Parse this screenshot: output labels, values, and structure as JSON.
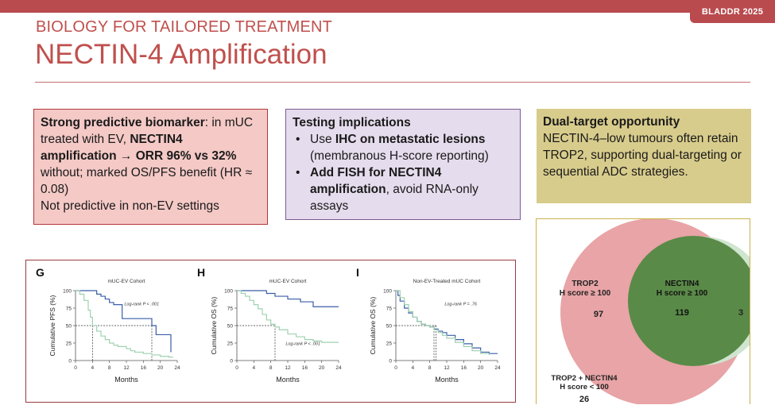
{
  "event_badge": "BLADDR 2025",
  "header": {
    "subtitle": "BIOLOGY FOR TAILORED TREATMENT",
    "title": "NECTIN-4 Amplification"
  },
  "box_red": {
    "b1": "Strong predictive biomarker",
    "t1": ": in mUC treated with EV, ",
    "b2": "NECTIN4 amplification → ORR 96% vs 32%",
    "t2": " without; marked OS/PFS benefit (HR ≈ 0.08)",
    "t3": "Not predictive in non-EV settings"
  },
  "box_purple": {
    "heading": "Testing implications",
    "bullet": "•",
    "i1_pre": "Use ",
    "i1_bold": "IHC on metastatic lesions",
    "i1_post": " (membranous H-score reporting)",
    "i2_bold": "Add FISH for NECTIN4 amplification",
    "i2_post": ", avoid RNA-only assays"
  },
  "box_gold": {
    "heading": "Dual-target opportunity",
    "text": "NECTIN-4–low tumours often retain TROP2, supporting dual-targeting or sequential ADC strategies."
  },
  "chart_data": [
    {
      "type": "line",
      "panel": "G",
      "title": "mUC-EV Cohort",
      "xlabel": "Months",
      "ylabel": "Cumulative PFS (%)",
      "annotation": "Log-rank P < .001",
      "xticks": [
        "0",
        "4",
        "8",
        "12",
        "16",
        "20",
        "24"
      ],
      "yticks": [
        "0",
        "25",
        "50",
        "75",
        "100"
      ],
      "xlim": [
        0,
        24
      ],
      "ylim": [
        0,
        100
      ],
      "series": [
        {
          "color": "#3a5ea8",
          "x": [
            0,
            4.5,
            5,
            6,
            7,
            8,
            9,
            10,
            11,
            16,
            18,
            19,
            22,
            22.5
          ],
          "y": [
            100,
            100,
            95,
            92,
            88,
            83,
            80,
            80,
            60,
            60,
            50,
            37,
            37,
            12
          ]
        },
        {
          "color": "#9fd1b0",
          "x": [
            0,
            1,
            2,
            3,
            3.5,
            4,
            5,
            6,
            7,
            8,
            9,
            10,
            12,
            13,
            14,
            16,
            18,
            20,
            22,
            23
          ],
          "y": [
            100,
            95,
            86,
            72,
            62,
            50,
            42,
            35,
            30,
            25,
            22,
            20,
            17,
            14,
            12,
            10,
            8,
            6,
            5,
            5
          ]
        }
      ]
    },
    {
      "type": "line",
      "panel": "H",
      "title": "mUC-EV Cohort",
      "xlabel": "Months",
      "ylabel": "Cumulative OS (%)",
      "annotation": "Log-rank P < .001",
      "xticks": [
        "0",
        "4",
        "8",
        "12",
        "16",
        "20",
        "24"
      ],
      "yticks": [
        "0",
        "25",
        "50",
        "75",
        "100"
      ],
      "xlim": [
        0,
        24
      ],
      "ylim": [
        0,
        100
      ],
      "series": [
        {
          "color": "#3a5ea8",
          "x": [
            0,
            6,
            7,
            8,
            9,
            10,
            12,
            13,
            15,
            16,
            18,
            20,
            24
          ],
          "y": [
            100,
            100,
            96,
            96,
            92,
            92,
            88,
            88,
            84,
            84,
            77,
            77,
            77
          ]
        },
        {
          "color": "#9fd1b0",
          "x": [
            0,
            1,
            2,
            3,
            4,
            5,
            6,
            7,
            8,
            9,
            10,
            12,
            14,
            16,
            18,
            20,
            24
          ],
          "y": [
            100,
            96,
            92,
            86,
            80,
            74,
            66,
            58,
            52,
            48,
            44,
            38,
            34,
            30,
            28,
            26,
            26
          ]
        }
      ]
    },
    {
      "type": "line",
      "panel": "I",
      "title": "Non-EV-Treated mUC Cohort",
      "xlabel": "Months",
      "ylabel": "Cumulative OS (%)",
      "annotation": "Log-rank P = .76",
      "xticks": [
        "0",
        "4",
        "8",
        "12",
        "16",
        "20",
        "24"
      ],
      "yticks": [
        "0",
        "25",
        "50",
        "75",
        "100"
      ],
      "xlim": [
        0,
        24
      ],
      "ylim": [
        0,
        100
      ],
      "series": [
        {
          "color": "#3a5ea8",
          "x": [
            0,
            0.5,
            1,
            2,
            3,
            4,
            5,
            6,
            7,
            8,
            9,
            10,
            11,
            12,
            14,
            16,
            18,
            20,
            22,
            24
          ],
          "y": [
            100,
            93,
            85,
            75,
            68,
            62,
            56,
            52,
            50,
            48,
            45,
            42,
            40,
            36,
            30,
            24,
            18,
            12,
            10,
            10
          ]
        },
        {
          "color": "#9fd1b0",
          "x": [
            0,
            1,
            2,
            3,
            4,
            5,
            6,
            7,
            8,
            9,
            10,
            11,
            12,
            14,
            16,
            18,
            20,
            22
          ],
          "y": [
            100,
            90,
            80,
            70,
            62,
            56,
            52,
            50,
            48,
            44,
            40,
            36,
            32,
            26,
            20,
            14,
            10,
            8
          ]
        }
      ]
    }
  ],
  "venn": {
    "trop2_label": "TROP2",
    "trop2_score": "H score ≥ 100",
    "trop2_only": "97",
    "nectin4_label": "NECTIN4",
    "nectin4_score": "H score ≥ 100",
    "both": "119",
    "nectin4_only": "3",
    "neither_label": "TROP2 + NECTIN4",
    "neither_score": "H score < 100",
    "neither": "26",
    "colors": {
      "trop2": "#e8a4a6",
      "nectin4": "#5a8a48",
      "nectin4_edge": "#cfe5cf"
    }
  }
}
